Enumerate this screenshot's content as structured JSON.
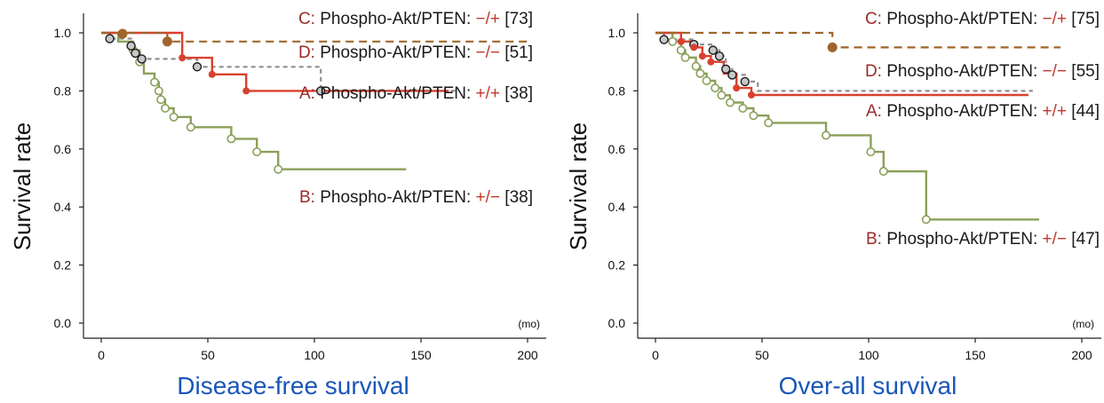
{
  "chart_data": [
    {
      "type": "line",
      "title": "Disease-free survival",
      "ylabel": "Survival rate",
      "x_unit": "(mo)",
      "xlim": [
        -8,
        210
      ],
      "ylim": [
        0,
        1.05
      ],
      "xticks": [
        "0",
        "50",
        "100",
        "150",
        "200"
      ],
      "yticks": [
        "0.0",
        "0.2",
        "0.4",
        "0.6",
        "0.8",
        "1.0"
      ],
      "series": [
        {
          "name": "A: Phospho-Akt/PTEN: +/+ [38]",
          "letter": "A:",
          "label_text": " Phospho-Akt/PTEN: ",
          "sign": "+/+",
          "n": " [38]",
          "color": "#d9412f",
          "dash": "none",
          "marker": "filled",
          "points": [
            [
              0,
              1.0
            ],
            [
              38,
              1.0
            ],
            [
              38,
              0.914
            ],
            [
              52,
              0.914
            ],
            [
              52,
              0.857
            ],
            [
              68,
              0.857
            ],
            [
              68,
              0.8
            ],
            [
              163,
              0.8
            ]
          ],
          "markers": [
            [
              38,
              0.914
            ],
            [
              52,
              0.857
            ],
            [
              68,
              0.8
            ]
          ]
        },
        {
          "name": "B: Phospho-Akt/PTEN: +/− [38]",
          "letter": "B:",
          "label_text": " Phospho-Akt/PTEN: ",
          "sign": "+/−",
          "n": " [38]",
          "color": "#8aa05a",
          "dash": "none",
          "marker": "open-green",
          "points": [
            [
              0,
              1.0
            ],
            [
              8,
              1.0
            ],
            [
              8,
              0.97
            ],
            [
              15,
              0.97
            ],
            [
              15,
              0.94
            ],
            [
              18,
              0.94
            ],
            [
              18,
              0.9
            ],
            [
              20,
              0.9
            ],
            [
              20,
              0.86
            ],
            [
              25,
              0.86
            ],
            [
              25,
              0.83
            ],
            [
              27,
              0.83
            ],
            [
              27,
              0.8
            ],
            [
              28,
              0.8
            ],
            [
              28,
              0.77
            ],
            [
              30,
              0.77
            ],
            [
              30,
              0.74
            ],
            [
              34,
              0.74
            ],
            [
              34,
              0.71
            ],
            [
              42,
              0.71
            ],
            [
              42,
              0.675
            ],
            [
              61,
              0.675
            ],
            [
              61,
              0.635
            ],
            [
              73,
              0.635
            ],
            [
              73,
              0.59
            ],
            [
              83,
              0.59
            ],
            [
              83,
              0.53
            ],
            [
              143,
              0.53
            ]
          ],
          "markers": [
            [
              15,
              0.94
            ],
            [
              18,
              0.9
            ],
            [
              25,
              0.83
            ],
            [
              27,
              0.8
            ],
            [
              28,
              0.77
            ],
            [
              30,
              0.74
            ],
            [
              34,
              0.71
            ],
            [
              42,
              0.675
            ],
            [
              61,
              0.635
            ],
            [
              73,
              0.59
            ],
            [
              83,
              0.53
            ]
          ]
        },
        {
          "name": "C: Phospho-Akt/PTEN: −/+ [73]",
          "letter": "C:",
          "label_text": " Phospho-Akt/PTEN: ",
          "sign": "−/+",
          "n": " [73]",
          "color": "#a0652a",
          "dash": "9,6",
          "marker": "filled-brown",
          "points": [
            [
              0,
              1.0
            ],
            [
              31,
              1.0
            ],
            [
              31,
              0.97
            ],
            [
              200,
              0.97
            ]
          ],
          "markers": [
            [
              10,
              0.997
            ],
            [
              31,
              0.97
            ]
          ]
        },
        {
          "name": "D: Phospho-Akt/PTEN: −/− [51]",
          "letter": "D:",
          "label_text": " Phospho-Akt/PTEN: ",
          "sign": "−/−",
          "n": " [51]",
          "color": "#8f8f8f",
          "dash": "5,4",
          "marker": "gray-ring",
          "points": [
            [
              0,
              1.0
            ],
            [
              4,
              1.0
            ],
            [
              4,
              0.98
            ],
            [
              14,
              0.98
            ],
            [
              14,
              0.955
            ],
            [
              16,
              0.955
            ],
            [
              16,
              0.93
            ],
            [
              19,
              0.93
            ],
            [
              19,
              0.91
            ],
            [
              45,
              0.91
            ],
            [
              45,
              0.883
            ],
            [
              103,
              0.883
            ],
            [
              103,
              0.8
            ],
            [
              168,
              0.8
            ]
          ],
          "markers": [
            [
              4,
              0.98
            ],
            [
              14,
              0.955
            ],
            [
              16,
              0.93
            ],
            [
              19,
              0.91
            ],
            [
              45,
              0.883
            ],
            [
              103,
              0.8
            ]
          ]
        }
      ]
    },
    {
      "type": "line",
      "title": "Over-all survival",
      "ylabel": "Survival rate",
      "x_unit": "(mo)",
      "xlim": [
        -8,
        210
      ],
      "ylim": [
        0,
        1.05
      ],
      "xticks": [
        "0",
        "50",
        "100",
        "150",
        "200"
      ],
      "yticks": [
        "0.0",
        "0.2",
        "0.4",
        "0.6",
        "0.8",
        "1.0"
      ],
      "series": [
        {
          "name": "A: Phospho-Akt/PTEN: +/+ [44]",
          "letter": "A:",
          "label_text": " Phospho-Akt/PTEN: ",
          "sign": "+/+",
          "n": " [44]",
          "color": "#d9412f",
          "dash": "none",
          "marker": "filled",
          "points": [
            [
              0,
              1.0
            ],
            [
              12,
              1.0
            ],
            [
              12,
              0.97
            ],
            [
              18,
              0.97
            ],
            [
              18,
              0.95
            ],
            [
              22,
              0.95
            ],
            [
              22,
              0.92
            ],
            [
              26,
              0.92
            ],
            [
              26,
              0.9
            ],
            [
              32,
              0.9
            ],
            [
              32,
              0.86
            ],
            [
              38,
              0.86
            ],
            [
              38,
              0.81
            ],
            [
              45,
              0.81
            ],
            [
              45,
              0.786
            ],
            [
              175,
              0.786
            ]
          ],
          "markers": [
            [
              12,
              0.97
            ],
            [
              18,
              0.95
            ],
            [
              22,
              0.92
            ],
            [
              26,
              0.9
            ],
            [
              38,
              0.81
            ],
            [
              45,
              0.786
            ]
          ]
        },
        {
          "name": "B: Phospho-Akt/PTEN: +/− [47]",
          "letter": "B:",
          "label_text": " Phospho-Akt/PTEN: ",
          "sign": "+/−",
          "n": " [47]",
          "color": "#8aa05a",
          "dash": "none",
          "marker": "open-green",
          "points": [
            [
              0,
              1.0
            ],
            [
              8,
              1.0
            ],
            [
              8,
              0.97
            ],
            [
              12,
              0.97
            ],
            [
              12,
              0.94
            ],
            [
              14,
              0.94
            ],
            [
              14,
              0.915
            ],
            [
              19,
              0.915
            ],
            [
              19,
              0.885
            ],
            [
              21,
              0.885
            ],
            [
              21,
              0.86
            ],
            [
              24,
              0.86
            ],
            [
              24,
              0.835
            ],
            [
              28,
              0.835
            ],
            [
              28,
              0.81
            ],
            [
              31,
              0.81
            ],
            [
              31,
              0.785
            ],
            [
              35,
              0.785
            ],
            [
              35,
              0.76
            ],
            [
              41,
              0.76
            ],
            [
              41,
              0.74
            ],
            [
              46,
              0.74
            ],
            [
              46,
              0.715
            ],
            [
              53,
              0.715
            ],
            [
              53,
              0.69
            ],
            [
              80,
              0.69
            ],
            [
              80,
              0.647
            ],
            [
              101,
              0.647
            ],
            [
              101,
              0.59
            ],
            [
              107,
              0.59
            ],
            [
              107,
              0.523
            ],
            [
              127,
              0.523
            ],
            [
              127,
              0.357
            ],
            [
              180,
              0.357
            ]
          ],
          "markers": [
            [
              8,
              0.97
            ],
            [
              12,
              0.94
            ],
            [
              14,
              0.915
            ],
            [
              19,
              0.885
            ],
            [
              21,
              0.86
            ],
            [
              24,
              0.835
            ],
            [
              28,
              0.81
            ],
            [
              31,
              0.785
            ],
            [
              35,
              0.76
            ],
            [
              41,
              0.74
            ],
            [
              46,
              0.715
            ],
            [
              53,
              0.69
            ],
            [
              80,
              0.647
            ],
            [
              101,
              0.59
            ],
            [
              107,
              0.523
            ],
            [
              127,
              0.357
            ]
          ]
        },
        {
          "name": "C: Phospho-Akt/PTEN: −/+ [75]",
          "letter": "C:",
          "label_text": " Phospho-Akt/PTEN: ",
          "sign": "−/+",
          "n": " [75]",
          "color": "#a0652a",
          "dash": "9,6",
          "marker": "filled-brown",
          "points": [
            [
              0,
              1.0
            ],
            [
              83,
              1.0
            ],
            [
              83,
              0.95
            ],
            [
              190,
              0.95
            ]
          ],
          "markers": [
            [
              83,
              0.95
            ]
          ]
        },
        {
          "name": "D: Phospho-Akt/PTEN: −/− [55]",
          "letter": "D:",
          "label_text": " Phospho-Akt/PTEN: ",
          "sign": "−/−",
          "n": " [55]",
          "color": "#8f8f8f",
          "dash": "5,4",
          "marker": "gray-ring",
          "points": [
            [
              0,
              1.0
            ],
            [
              4,
              1.0
            ],
            [
              4,
              0.977
            ],
            [
              18,
              0.977
            ],
            [
              18,
              0.96
            ],
            [
              27,
              0.96
            ],
            [
              27,
              0.94
            ],
            [
              30,
              0.94
            ],
            [
              30,
              0.92
            ],
            [
              33,
              0.92
            ],
            [
              33,
              0.875
            ],
            [
              36,
              0.875
            ],
            [
              36,
              0.855
            ],
            [
              42,
              0.855
            ],
            [
              42,
              0.832
            ],
            [
              48,
              0.832
            ],
            [
              48,
              0.8
            ],
            [
              177,
              0.8
            ]
          ],
          "markers": [
            [
              4,
              0.977
            ],
            [
              18,
              0.96
            ],
            [
              27,
              0.94
            ],
            [
              30,
              0.92
            ],
            [
              33,
              0.875
            ],
            [
              36,
              0.855
            ],
            [
              42,
              0.832
            ]
          ]
        }
      ]
    }
  ]
}
